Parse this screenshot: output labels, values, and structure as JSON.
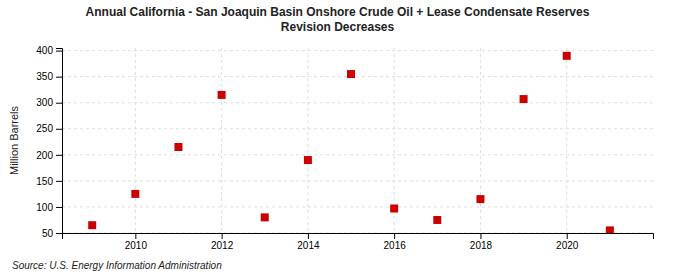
{
  "chart_data": {
    "type": "scatter",
    "title": "Annual California - San Joaquin Basin Onshore Crude Oil + Lease Condensate Reserves\nRevision Decreases",
    "ylabel": "Million Barrels",
    "annotation": "Source: U.S. Energy Information Administration",
    "x": [
      2009,
      2010,
      2011,
      2012,
      2013,
      2014,
      2015,
      2016,
      2017,
      2018,
      2019,
      2020,
      2021
    ],
    "values": [
      65,
      125,
      215,
      315,
      80,
      190,
      355,
      97,
      75,
      115,
      307,
      390,
      55
    ],
    "color": "#cc0000",
    "marker": "square",
    "xlim": [
      2008.3,
      2022.0
    ],
    "xticks": [
      2010,
      2012,
      2014,
      2016,
      2018,
      2020
    ],
    "ylim": [
      50,
      405
    ],
    "yticks": [
      50,
      100,
      150,
      200,
      250,
      300,
      350,
      400
    ],
    "grid": true
  }
}
